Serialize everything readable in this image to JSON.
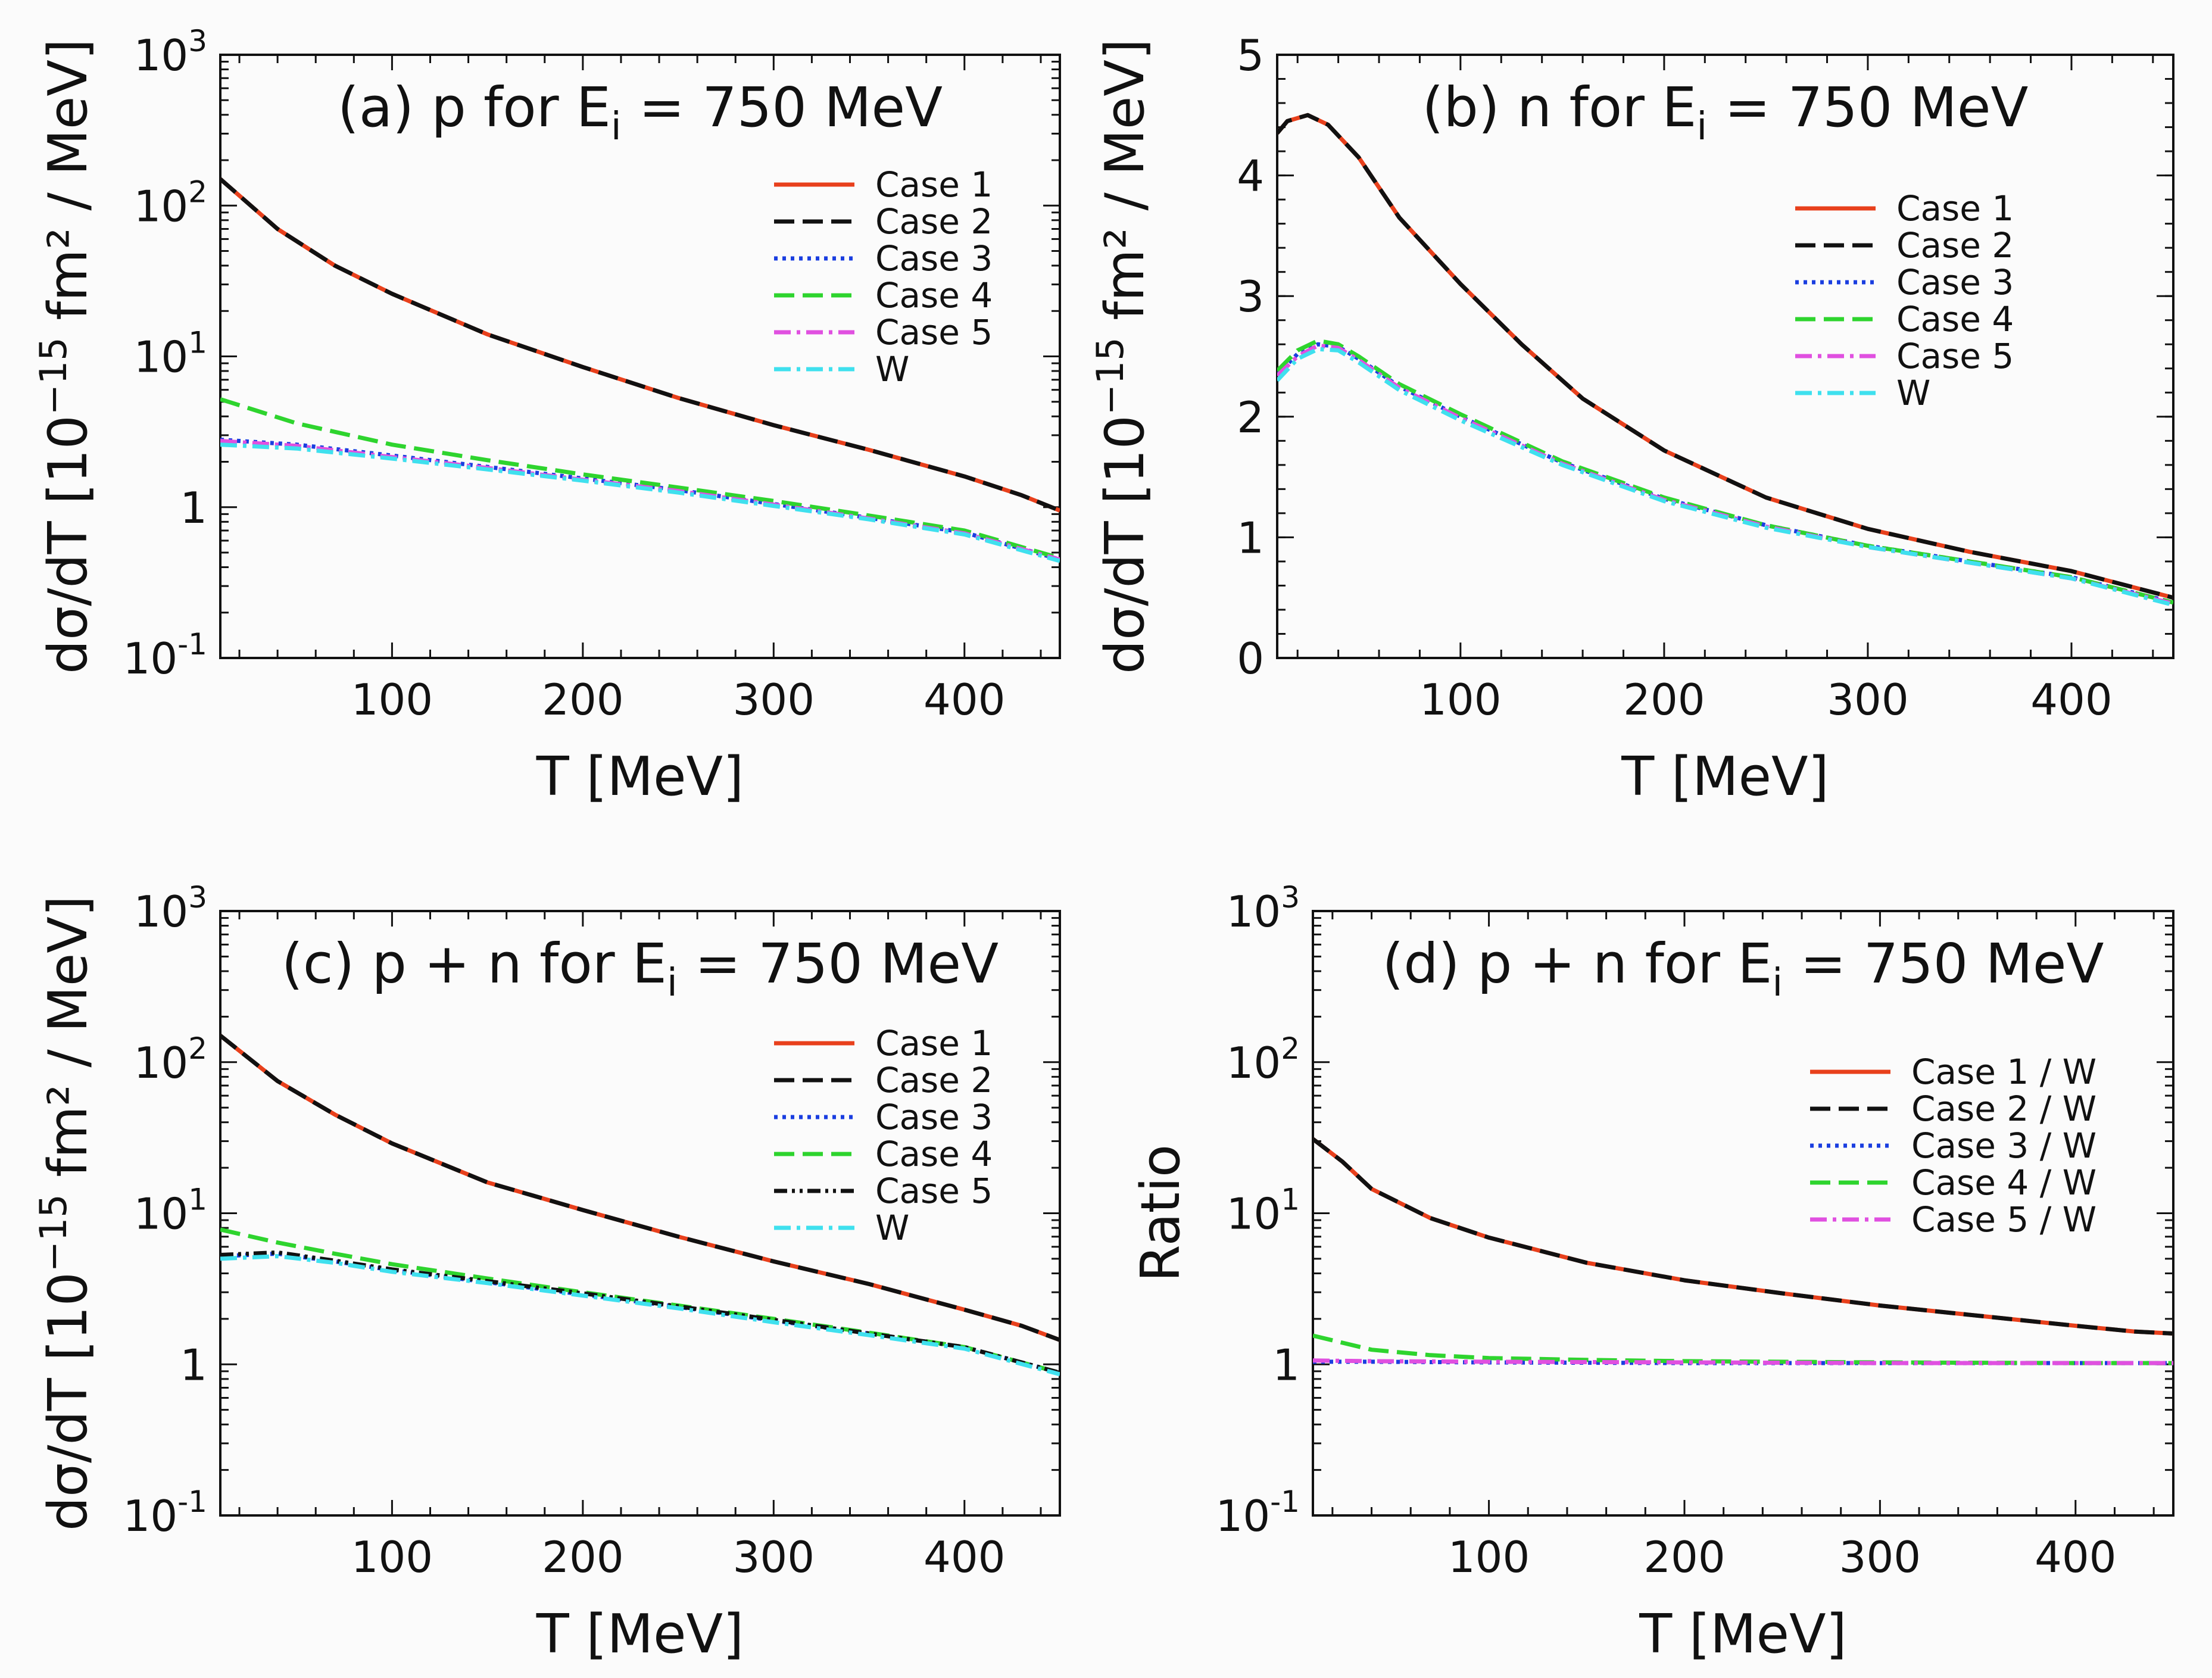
{
  "chart_data": [
    {
      "panel": "a",
      "type": "line",
      "title": "(a) p for E",
      "title_sub": "i",
      "title_tail": " = 750 MeV",
      "xlabel": "T [MeV]",
      "ylabel": "dσ/dT [10",
      "ylabel_exp": "−15",
      "ylabel_tail": " fm² / MeV]",
      "xlim": [
        10,
        450
      ],
      "ylim": [
        0.1,
        1000
      ],
      "yscale": "log",
      "xticks": [
        100,
        200,
        300,
        400
      ],
      "xtick_labels": [
        "100",
        "200",
        "300",
        "400"
      ],
      "yticks": [
        0.1,
        1,
        10,
        100,
        1000
      ],
      "ytick_labels": [
        {
          "base": "10",
          "exp": "-1"
        },
        {
          "base": "1",
          "exp": ""
        },
        {
          "base": "10",
          "exp": "1"
        },
        {
          "base": "10",
          "exp": "2"
        },
        {
          "base": "10",
          "exp": "3"
        }
      ],
      "legend_position": "top-right",
      "series": [
        {
          "name": "Case 1",
          "color": "#e8401c",
          "dash": "solid",
          "x": [
            10,
            40,
            70,
            100,
            150,
            200,
            250,
            300,
            350,
            400,
            430,
            450
          ],
          "y": [
            150,
            70,
            40,
            26,
            14,
            8.5,
            5.3,
            3.5,
            2.4,
            1.6,
            1.2,
            0.95
          ]
        },
        {
          "name": "Case 2",
          "color": "#111111",
          "dash": "dashed",
          "x": [
            10,
            40,
            70,
            100,
            150,
            200,
            250,
            300,
            350,
            400,
            430,
            450
          ],
          "y": [
            150,
            70,
            40,
            26,
            14,
            8.5,
            5.3,
            3.5,
            2.4,
            1.6,
            1.2,
            0.95
          ]
        },
        {
          "name": "Case 3",
          "color": "#1a3ee0",
          "dash": "dotted",
          "x": [
            10,
            50,
            100,
            150,
            200,
            250,
            300,
            350,
            400,
            450
          ],
          "y": [
            2.8,
            2.6,
            2.2,
            1.85,
            1.55,
            1.3,
            1.05,
            0.85,
            0.68,
            0.45
          ]
        },
        {
          "name": "Case 4",
          "color": "#2ed42e",
          "dash": "dashed",
          "x": [
            10,
            50,
            100,
            150,
            200,
            250,
            300,
            350,
            400,
            450
          ],
          "y": [
            5.2,
            3.6,
            2.6,
            2.05,
            1.65,
            1.35,
            1.1,
            0.88,
            0.7,
            0.46
          ]
        },
        {
          "name": "Case 5",
          "color": "#e050e0",
          "dash": "dashdot",
          "x": [
            10,
            50,
            100,
            150,
            200,
            250,
            300,
            350,
            400,
            450
          ],
          "y": [
            2.75,
            2.55,
            2.15,
            1.82,
            1.52,
            1.28,
            1.04,
            0.84,
            0.67,
            0.45
          ]
        },
        {
          "name": "W",
          "color": "#3fe0ee",
          "dash": "dashdot",
          "x": [
            10,
            50,
            100,
            150,
            200,
            250,
            300,
            350,
            400,
            450
          ],
          "y": [
            2.6,
            2.45,
            2.1,
            1.78,
            1.5,
            1.25,
            1.02,
            0.83,
            0.66,
            0.44
          ]
        }
      ]
    },
    {
      "panel": "b",
      "type": "line",
      "title": "(b) n for E",
      "title_sub": "i",
      "title_tail": " = 750 MeV",
      "xlabel": "T [MeV]",
      "ylabel": "dσ/dT [10",
      "ylabel_exp": "−15",
      "ylabel_tail": " fm² / MeV]",
      "xlim": [
        10,
        450
      ],
      "ylim": [
        0,
        5
      ],
      "yscale": "linear",
      "xticks": [
        100,
        200,
        300,
        400
      ],
      "xtick_labels": [
        "100",
        "200",
        "300",
        "400"
      ],
      "yticks": [
        0,
        1,
        2,
        3,
        4,
        5
      ],
      "ytick_labels": [
        {
          "base": "0",
          "exp": ""
        },
        {
          "base": "1",
          "exp": ""
        },
        {
          "base": "2",
          "exp": ""
        },
        {
          "base": "3",
          "exp": ""
        },
        {
          "base": "4",
          "exp": ""
        },
        {
          "base": "5",
          "exp": ""
        }
      ],
      "legend_position": "top-right",
      "series": [
        {
          "name": "Case 1",
          "color": "#e8401c",
          "dash": "solid",
          "x": [
            10,
            15,
            25,
            35,
            50,
            70,
            100,
            130,
            160,
            200,
            250,
            300,
            350,
            400,
            450
          ],
          "y": [
            4.35,
            4.45,
            4.5,
            4.42,
            4.15,
            3.65,
            3.1,
            2.6,
            2.15,
            1.72,
            1.33,
            1.07,
            0.88,
            0.72,
            0.5
          ]
        },
        {
          "name": "Case 2",
          "color": "#111111",
          "dash": "dashed",
          "x": [
            10,
            15,
            25,
            35,
            50,
            70,
            100,
            130,
            160,
            200,
            250,
            300,
            350,
            400,
            450
          ],
          "y": [
            4.35,
            4.45,
            4.5,
            4.42,
            4.15,
            3.65,
            3.1,
            2.6,
            2.15,
            1.72,
            1.33,
            1.07,
            0.88,
            0.72,
            0.5
          ]
        },
        {
          "name": "Case 3",
          "color": "#1a3ee0",
          "dash": "dotted",
          "x": [
            10,
            20,
            30,
            40,
            50,
            70,
            100,
            150,
            200,
            250,
            300,
            350,
            400,
            450
          ],
          "y": [
            2.35,
            2.52,
            2.6,
            2.58,
            2.48,
            2.25,
            2.0,
            1.62,
            1.32,
            1.1,
            0.93,
            0.8,
            0.67,
            0.46
          ]
        },
        {
          "name": "Case 4",
          "color": "#2ed42e",
          "dash": "dashed",
          "x": [
            10,
            20,
            30,
            40,
            50,
            70,
            100,
            150,
            200,
            250,
            300,
            350,
            400,
            450
          ],
          "y": [
            2.38,
            2.55,
            2.63,
            2.6,
            2.5,
            2.27,
            2.02,
            1.63,
            1.33,
            1.1,
            0.93,
            0.8,
            0.67,
            0.46
          ]
        },
        {
          "name": "Case 5",
          "color": "#e050e0",
          "dash": "dashdot",
          "x": [
            10,
            20,
            30,
            40,
            50,
            70,
            100,
            150,
            200,
            250,
            300,
            350,
            400,
            450
          ],
          "y": [
            2.34,
            2.5,
            2.59,
            2.57,
            2.47,
            2.24,
            1.99,
            1.61,
            1.31,
            1.09,
            0.92,
            0.79,
            0.66,
            0.45
          ]
        },
        {
          "name": "W",
          "color": "#3fe0ee",
          "dash": "dashdot",
          "x": [
            10,
            20,
            30,
            40,
            50,
            70,
            100,
            150,
            200,
            250,
            300,
            350,
            400,
            450
          ],
          "y": [
            2.3,
            2.48,
            2.56,
            2.55,
            2.45,
            2.22,
            1.97,
            1.6,
            1.3,
            1.08,
            0.92,
            0.79,
            0.66,
            0.44
          ]
        }
      ]
    },
    {
      "panel": "c",
      "type": "line",
      "title": "(c) p + n for E",
      "title_sub": "i",
      "title_tail": " = 750 MeV",
      "xlabel": "T [MeV]",
      "ylabel": "dσ/dT [10",
      "ylabel_exp": "−15",
      "ylabel_tail": " fm² / MeV]",
      "xlim": [
        10,
        450
      ],
      "ylim": [
        0.1,
        1000
      ],
      "yscale": "log",
      "xticks": [
        100,
        200,
        300,
        400
      ],
      "xtick_labels": [
        "100",
        "200",
        "300",
        "400"
      ],
      "yticks": [
        0.1,
        1,
        10,
        100,
        1000
      ],
      "ytick_labels": [
        {
          "base": "10",
          "exp": "-1"
        },
        {
          "base": "1",
          "exp": ""
        },
        {
          "base": "10",
          "exp": "1"
        },
        {
          "base": "10",
          "exp": "2"
        },
        {
          "base": "10",
          "exp": "3"
        }
      ],
      "legend_position": "top-right",
      "series": [
        {
          "name": "Case 1",
          "color": "#e8401c",
          "dash": "solid",
          "x": [
            10,
            40,
            70,
            100,
            150,
            200,
            250,
            300,
            350,
            400,
            430,
            450
          ],
          "y": [
            150,
            75,
            45,
            29,
            16,
            10.5,
            7,
            4.8,
            3.4,
            2.3,
            1.8,
            1.45
          ]
        },
        {
          "name": "Case 2",
          "color": "#111111",
          "dash": "dashed",
          "x": [
            10,
            40,
            70,
            100,
            150,
            200,
            250,
            300,
            350,
            400,
            430,
            450
          ],
          "y": [
            150,
            75,
            45,
            29,
            16,
            10.5,
            7,
            4.8,
            3.4,
            2.3,
            1.8,
            1.45
          ]
        },
        {
          "name": "Case 3",
          "color": "#1a3ee0",
          "dash": "dotted",
          "x": [
            10,
            40,
            70,
            100,
            150,
            200,
            250,
            300,
            350,
            400,
            450
          ],
          "y": [
            5.2,
            5.4,
            4.8,
            4.2,
            3.5,
            2.9,
            2.4,
            1.95,
            1.6,
            1.3,
            0.88
          ]
        },
        {
          "name": "Case 4",
          "color": "#2ed42e",
          "dash": "dashed",
          "x": [
            10,
            40,
            70,
            100,
            150,
            200,
            250,
            300,
            350,
            400,
            450
          ],
          "y": [
            7.8,
            6.4,
            5.4,
            4.6,
            3.7,
            3.0,
            2.45,
            2.0,
            1.62,
            1.3,
            0.88
          ]
        },
        {
          "name": "Case 5",
          "color": "#111111",
          "dash": "dashdotdot",
          "x": [
            10,
            40,
            70,
            100,
            150,
            200,
            250,
            300,
            350,
            400,
            450
          ],
          "y": [
            5.3,
            5.5,
            4.85,
            4.25,
            3.55,
            2.95,
            2.42,
            1.97,
            1.6,
            1.3,
            0.88
          ]
        },
        {
          "name": "W",
          "color": "#3fe0ee",
          "dash": "dashdot",
          "x": [
            10,
            40,
            70,
            100,
            150,
            200,
            250,
            300,
            350,
            400,
            450
          ],
          "y": [
            5.0,
            5.2,
            4.7,
            4.1,
            3.45,
            2.85,
            2.35,
            1.9,
            1.56,
            1.27,
            0.86
          ]
        }
      ]
    },
    {
      "panel": "d",
      "type": "line",
      "title": "(d) p + n for E",
      "title_sub": "i",
      "title_tail": " = 750 MeV",
      "xlabel": "T [MeV]",
      "ylabel": "Ratio",
      "ylabel_exp": "",
      "ylabel_tail": "",
      "xlim": [
        10,
        450
      ],
      "ylim": [
        0.1,
        1000
      ],
      "yscale": "log",
      "xticks": [
        100,
        200,
        300,
        400
      ],
      "xtick_labels": [
        "100",
        "200",
        "300",
        "400"
      ],
      "yticks": [
        0.1,
        1,
        10,
        100,
        1000
      ],
      "ytick_labels": [
        {
          "base": "10",
          "exp": "-1"
        },
        {
          "base": "1",
          "exp": ""
        },
        {
          "base": "10",
          "exp": "1"
        },
        {
          "base": "10",
          "exp": "2"
        },
        {
          "base": "10",
          "exp": "3"
        }
      ],
      "legend_position": "top-right",
      "series": [
        {
          "name": "Case 1 / W",
          "color": "#e8401c",
          "dash": "solid",
          "x": [
            10,
            25,
            40,
            70,
            100,
            150,
            200,
            250,
            300,
            350,
            400,
            430,
            450
          ],
          "y": [
            31,
            22,
            14.5,
            9.3,
            6.9,
            4.7,
            3.6,
            2.95,
            2.45,
            2.1,
            1.8,
            1.65,
            1.6
          ]
        },
        {
          "name": "Case 2 / W",
          "color": "#111111",
          "dash": "dashed",
          "x": [
            10,
            25,
            40,
            70,
            100,
            150,
            200,
            250,
            300,
            350,
            400,
            430,
            450
          ],
          "y": [
            31,
            22,
            14.5,
            9.3,
            6.9,
            4.7,
            3.6,
            2.95,
            2.45,
            2.1,
            1.8,
            1.65,
            1.6
          ]
        },
        {
          "name": "Case 3 / W",
          "color": "#1a3ee0",
          "dash": "dotted",
          "x": [
            10,
            40,
            100,
            200,
            300,
            400,
            450
          ],
          "y": [
            1.04,
            1.04,
            1.03,
            1.02,
            1.02,
            1.02,
            1.02
          ]
        },
        {
          "name": "Case 4 / W",
          "color": "#2ed42e",
          "dash": "dashed",
          "x": [
            10,
            40,
            70,
            100,
            150,
            200,
            300,
            400,
            450
          ],
          "y": [
            1.55,
            1.25,
            1.15,
            1.1,
            1.07,
            1.05,
            1.03,
            1.02,
            1.02
          ]
        },
        {
          "name": "Case 5 / W",
          "color": "#e050e0",
          "dash": "dashdot",
          "x": [
            10,
            40,
            100,
            200,
            300,
            400,
            450
          ],
          "y": [
            1.06,
            1.05,
            1.04,
            1.03,
            1.02,
            1.02,
            1.02
          ]
        }
      ]
    }
  ]
}
